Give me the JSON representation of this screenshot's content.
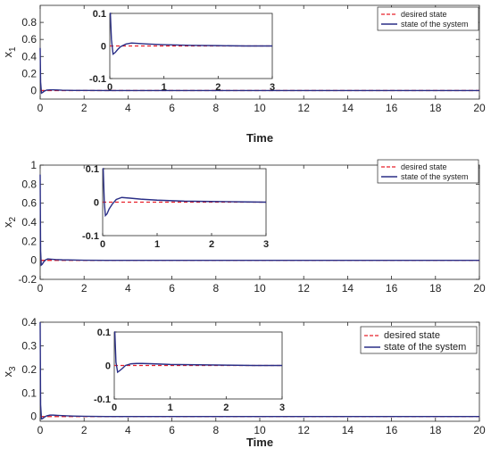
{
  "colors": {
    "desired": "#e8202a",
    "system": "#2a2e86",
    "axis": "#262626",
    "tick_text": "#262626"
  },
  "chart_data": [
    {
      "type": "line",
      "ylabel": "x1",
      "ylabel_main": "x",
      "ylabel_sub": "1",
      "xlabel": "Time",
      "xlim": [
        0,
        20
      ],
      "ylim": [
        -0.1,
        1.0
      ],
      "xticks": [
        0,
        2,
        4,
        6,
        8,
        10,
        12,
        14,
        16,
        18,
        20
      ],
      "yticks": [
        0,
        0.2,
        0.4,
        0.6,
        0.8
      ],
      "ytick_labels": [
        "0",
        "0.2",
        "0.4",
        "0.6",
        "0.8"
      ],
      "legend": {
        "placement": "top-right",
        "entries": [
          "desired state",
          "state of the system"
        ]
      },
      "series": [
        {
          "name": "desired state",
          "style": "dashed",
          "x": [
            0,
            20
          ],
          "y": [
            0,
            0
          ]
        },
        {
          "name": "state of the system",
          "style": "solid",
          "x": [
            0,
            0.02,
            0.06,
            0.12,
            0.2,
            0.3,
            0.45,
            0.6,
            0.8,
            1.0,
            1.5,
            2,
            3,
            5,
            10,
            20
          ],
          "y": [
            0.5,
            0.1,
            -0.03,
            -0.02,
            -0.005,
            0.005,
            0.008,
            0.008,
            0.006,
            0.004,
            0.002,
            0.001,
            0.0,
            0.0,
            0.0,
            0.0
          ]
        }
      ],
      "inset": {
        "xlim": [
          0,
          3
        ],
        "ylim": [
          -0.1,
          0.1
        ],
        "xticks": [
          0,
          1,
          2,
          3
        ],
        "yticks": [
          -0.1,
          0,
          0.1
        ],
        "ytick_labels": [
          "-0.1",
          "0",
          "0.1"
        ],
        "series": [
          {
            "name": "desired state",
            "style": "dashed",
            "x": [
              0,
              3
            ],
            "y": [
              0,
              0
            ]
          },
          {
            "name": "state of the system",
            "style": "solid",
            "x": [
              0,
              0.01,
              0.03,
              0.06,
              0.1,
              0.15,
              0.2,
              0.3,
              0.4,
              0.5,
              0.7,
              1.0,
              1.5,
              2.0,
              2.5,
              3.0
            ],
            "y": [
              0.1,
              0.1,
              0.02,
              -0.025,
              -0.02,
              -0.01,
              -0.002,
              0.006,
              0.009,
              0.008,
              0.006,
              0.004,
              0.002,
              0.001,
              0.0,
              0.0
            ]
          }
        ]
      }
    },
    {
      "type": "line",
      "ylabel": "x2",
      "ylabel_main": "x",
      "ylabel_sub": "2",
      "xlabel": "",
      "xlim": [
        0,
        20
      ],
      "ylim": [
        -0.2,
        1.0
      ],
      "xticks": [
        0,
        2,
        4,
        6,
        8,
        10,
        12,
        14,
        16,
        18,
        20
      ],
      "yticks": [
        -0.2,
        0,
        0.2,
        0.4,
        0.6,
        0.8,
        1
      ],
      "ytick_labels": [
        "-0.2",
        "0",
        "0.2",
        "0.4",
        "0.6",
        "0.8",
        "1"
      ],
      "legend": {
        "placement": "top-right",
        "entries": [
          "desired state",
          "state of the system"
        ]
      },
      "series": [
        {
          "name": "desired state",
          "style": "dashed",
          "x": [
            0,
            20
          ],
          "y": [
            0,
            0
          ]
        },
        {
          "name": "state of the system",
          "style": "solid",
          "x": [
            0,
            0.02,
            0.05,
            0.1,
            0.15,
            0.25,
            0.35,
            0.5,
            0.7,
            1.0,
            1.5,
            2,
            3,
            5,
            10,
            20
          ],
          "y": [
            0.9,
            0.1,
            -0.05,
            -0.04,
            -0.02,
            0.005,
            0.015,
            0.012,
            0.008,
            0.005,
            0.003,
            0.001,
            0.0,
            0.0,
            0.0,
            0.0
          ]
        }
      ],
      "inset": {
        "xlim": [
          0,
          3
        ],
        "ylim": [
          -0.1,
          0.1
        ],
        "xticks": [
          0,
          1,
          2,
          3
        ],
        "yticks": [
          -0.1,
          0,
          0.1
        ],
        "ytick_labels": [
          "-0.1",
          "0",
          "0.1"
        ],
        "series": [
          {
            "name": "desired state",
            "style": "dashed",
            "x": [
              0,
              3
            ],
            "y": [
              0,
              0
            ]
          },
          {
            "name": "state of the system",
            "style": "solid",
            "x": [
              0,
              0.01,
              0.03,
              0.05,
              0.08,
              0.12,
              0.18,
              0.25,
              0.35,
              0.5,
              0.7,
              1.0,
              1.5,
              2.0,
              2.5,
              3.0
            ],
            "y": [
              0.1,
              0.1,
              0.0,
              -0.04,
              -0.035,
              -0.02,
              -0.005,
              0.008,
              0.014,
              0.012,
              0.009,
              0.006,
              0.003,
              0.002,
              0.001,
              0.0
            ]
          }
        ]
      }
    },
    {
      "type": "line",
      "ylabel": "x3",
      "ylabel_main": "x",
      "ylabel_sub": "3",
      "xlabel": "Time",
      "xlim": [
        0,
        20
      ],
      "ylim": [
        -0.02,
        0.4
      ],
      "xticks": [
        0,
        2,
        4,
        6,
        8,
        10,
        12,
        14,
        16,
        18,
        20
      ],
      "yticks": [
        0,
        0.1,
        0.2,
        0.3,
        0.4
      ],
      "ytick_labels": [
        "0",
        "0.1",
        "0.2",
        "0.3",
        "0.4"
      ],
      "legend": {
        "placement": "top-right",
        "entries": [
          "desired state",
          "state of the system"
        ]
      },
      "series": [
        {
          "name": "desired state",
          "style": "dashed",
          "x": [
            0,
            20
          ],
          "y": [
            0,
            0
          ]
        },
        {
          "name": "state of the system",
          "style": "solid",
          "x": [
            0,
            0.02,
            0.06,
            0.12,
            0.2,
            0.3,
            0.45,
            0.6,
            0.8,
            1.0,
            1.5,
            2,
            3,
            5,
            10,
            20
          ],
          "y": [
            0.4,
            0.05,
            -0.01,
            -0.008,
            -0.002,
            0.003,
            0.006,
            0.006,
            0.005,
            0.004,
            0.002,
            0.001,
            0.0,
            0.0,
            0.0,
            0.0
          ]
        }
      ],
      "inset": {
        "xlim": [
          0,
          3
        ],
        "ylim": [
          -0.1,
          0.1
        ],
        "xticks": [
          0,
          1,
          2,
          3
        ],
        "yticks": [
          -0.1,
          0,
          0.1
        ],
        "ytick_labels": [
          "-0.1",
          "0",
          "0.1"
        ],
        "series": [
          {
            "name": "desired state",
            "style": "dashed",
            "x": [
              0,
              3
            ],
            "y": [
              0,
              0
            ]
          },
          {
            "name": "state of the system",
            "style": "solid",
            "x": [
              0,
              0.01,
              0.03,
              0.06,
              0.1,
              0.15,
              0.2,
              0.3,
              0.4,
              0.5,
              0.7,
              1.0,
              1.5,
              2.0,
              2.5,
              3.0
            ],
            "y": [
              0.1,
              0.1,
              0.01,
              -0.02,
              -0.015,
              -0.008,
              0.0,
              0.005,
              0.006,
              0.006,
              0.005,
              0.003,
              0.002,
              0.001,
              0.0,
              0.0
            ]
          }
        ]
      }
    }
  ]
}
